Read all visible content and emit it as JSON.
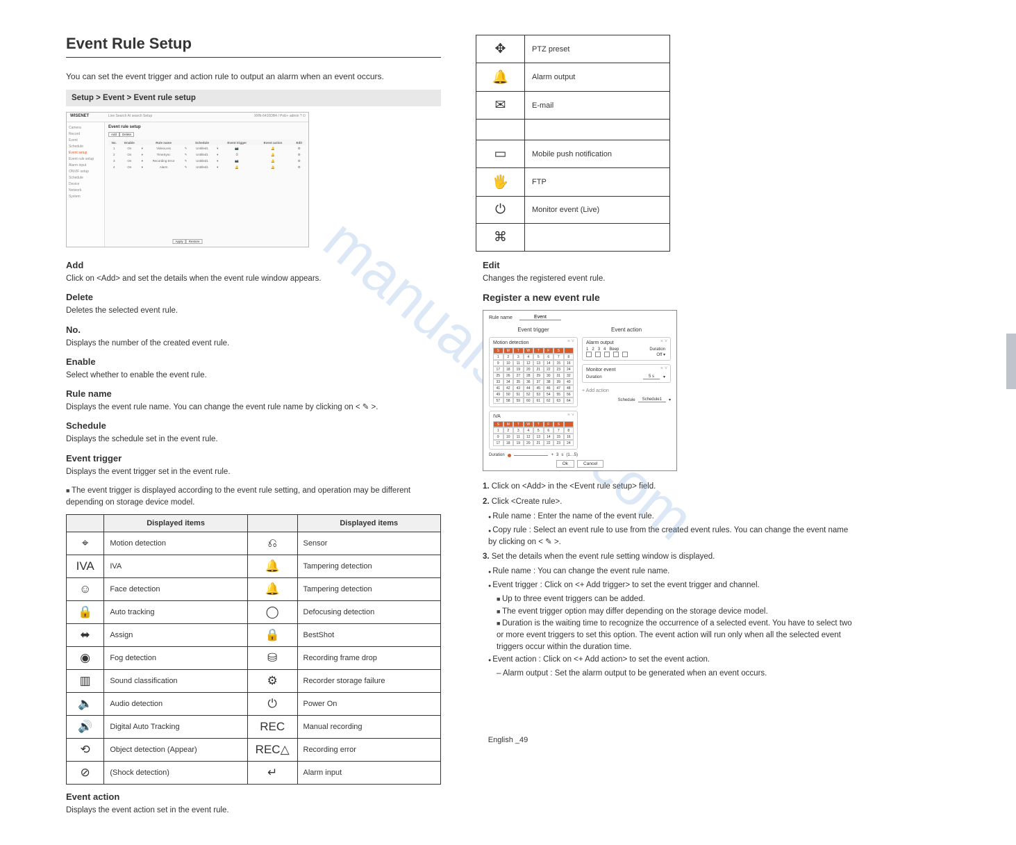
{
  "left": {
    "title": "Event Rule Setup",
    "desc": "You can set the event trigger and action rule to output an alarm when an event occurs.",
    "greybar": "Setup > Event > Event rule setup",
    "screenshot": {
      "brand": "WISENET",
      "tabs": "Live    Search    AI search    Setup",
      "right_links": "XRN-6410DB4 / PoE+    admin    ?    ⏻",
      "sidebar": [
        "Camera",
        "Record",
        "Event",
        "Schedule",
        "Event setup",
        "Event rule setup",
        "Alarm input",
        "ONVIF setup",
        "Schedule",
        "Device",
        "Network",
        "System"
      ],
      "sidebar_selected_index": 4,
      "main_title": "Event rule setup",
      "btns": [
        "Add",
        "Delete"
      ],
      "cols": [
        "No.",
        "Enable",
        "",
        "Rule name",
        "",
        "Schedule",
        "",
        "Event trigger",
        "",
        "Event action",
        "",
        "Edit"
      ],
      "rows": [
        [
          "1",
          "On",
          "▾",
          "VideoLoss",
          "✎",
          "Untitled1",
          "▾",
          "📷",
          "",
          "🔔",
          "",
          "⚙"
        ],
        [
          "2",
          "On",
          "▾",
          "TimeSync",
          "✎",
          "Untitled1",
          "▾",
          "⏱",
          "",
          "🔔",
          "",
          "⚙"
        ],
        [
          "3",
          "On",
          "▾",
          "Recording Error",
          "✎",
          "Untitled1",
          "▾",
          "📷",
          "",
          "🔔",
          "",
          "⚙"
        ],
        [
          "4",
          "On",
          "▾",
          "Alarm",
          "✎",
          "Untitled1",
          "▾",
          "🔔",
          "",
          "🔔",
          "",
          "⚙"
        ]
      ],
      "footer_btns": [
        "Apply",
        "Restore"
      ]
    },
    "paras": [
      {
        "h": "Add",
        "p": "Click on <Add> and set the details when the event rule window appears."
      },
      {
        "h": "Delete",
        "p": "Deletes the selected event rule."
      },
      {
        "h": "No.",
        "p": "Displays the number of the created event rule."
      },
      {
        "h": "Enable",
        "p": "Select whether to enable the event rule."
      },
      {
        "h": "Rule name",
        "p": "Displays the event rule name. You can change the event rule name by clicking on < ✎ >."
      },
      {
        "h": "Schedule",
        "p": "Displays the schedule set in the event rule."
      },
      {
        "h": "Event trigger",
        "p": "Displays the event trigger set in the event rule."
      }
    ],
    "note1": "The event trigger is displayed according to the event rule setting, and operation may be different depending on storage device model.",
    "trigger_table_header": [
      "",
      "Displayed items",
      "",
      "Displayed items"
    ],
    "triggers": [
      [
        "motion-detect-icon",
        "Motion detection",
        "sensor-icon",
        "Sensor"
      ],
      [
        "iva-icon",
        "IVA",
        "tamper-icon",
        "Tampering detection"
      ],
      [
        "face-icon",
        "Face detection",
        "tamper2-icon",
        "Tampering detection"
      ],
      [
        "auto-track-icon",
        "Auto tracking",
        "defocus-icon",
        "Defocusing detection"
      ],
      [
        "assign-icon",
        "Assign",
        "lock-icon",
        "BestShot"
      ],
      [
        "fog-icon",
        "Fog detection",
        "storage-err-icon",
        "Recording frame drop"
      ],
      [
        "sound-icon",
        "Sound classification",
        "storage-fail-icon",
        "Recorder storage failure"
      ],
      [
        "audio-icon",
        "Audio detection",
        "power-icon",
        "Power On"
      ],
      [
        "digital-auto-icon",
        "Digital Auto Tracking",
        "rec-icon",
        "Manual recording"
      ],
      [
        "appear-icon",
        "Object detection (Appear)",
        "rec-err-icon",
        "Recording error"
      ],
      [
        "shocl-icon",
        "(Shock detection)",
        "enter-icon",
        "Alarm input"
      ]
    ],
    "event_action_h": "Event action",
    "event_action_p": "Displays the event action set in the event rule."
  },
  "right": {
    "action_rows": [
      [
        "ptz-icon",
        "PTZ preset"
      ],
      [
        "alarm-out-icon",
        "Alarm output"
      ],
      [
        "email-icon",
        "E-mail"
      ],
      [
        "",
        ""
      ],
      [
        "mobile-icon",
        "Mobile push notification"
      ],
      [
        "ftp-icon",
        "FTP"
      ],
      [
        "monitor-icon",
        "Monitor event (Live)"
      ],
      [
        "cmd-icon",
        ""
      ]
    ],
    "edit_h": "Edit",
    "edit_p": "Changes the registered event rule.",
    "register_h": "Register a new event rule",
    "modal": {
      "rule_name_label": "Rule name",
      "rule_name_value": "Event",
      "trigger_h": "Event trigger",
      "action_h": "Event action",
      "trigger_panels": [
        {
          "title": "Motion detection",
          "rows": 8,
          "cols": 8,
          "days": [
            "S",
            "M",
            "T",
            "W",
            "T",
            "F",
            "S"
          ]
        },
        {
          "title": "IVA",
          "rows": 3,
          "cols": 8,
          "days": [
            "S",
            "M",
            "T",
            "W",
            "T",
            "F",
            "S"
          ]
        }
      ],
      "action_panels": [
        {
          "title": "Alarm output",
          "ck_labels": [
            "1",
            "2",
            "3",
            "4",
            "Beep"
          ],
          "dur_label": "Duration",
          "dur_val": "Off"
        },
        {
          "title": "Monitor event",
          "dur_label": "Duration",
          "dur_val": "5 s"
        }
      ],
      "add_action": "Add action",
      "duration_label": "Duration",
      "duration_range": "(1…5)",
      "duration_val": "3",
      "sched_label": "Schedule",
      "sched_val": "Schedule1",
      "btns": [
        "Ok",
        "Cancel"
      ]
    },
    "step1_label": "1.",
    "step1": "Click on <Add> in the <Event rule setup> field.",
    "step2_label": "2.",
    "step2": "Click <Create rule>.",
    "bullets": [
      "Rule name : Enter the name of the event rule.",
      "Copy rule : Select an event rule to use from the created event rules. You can change the event name by clicking on < ✎ >."
    ],
    "step3_label": "3.",
    "step3": "Set the details when the event rule setting window is displayed.",
    "subs": [
      "Rule name : You can change the event rule name.",
      "Event trigger : Click on <+ Add trigger> to set the event trigger and channel.",
      "Up to three event triggers can be added.",
      "The event trigger option may differ depending on the storage device model.",
      "Duration is the waiting time to recognize the occurrence of a selected event. You have to select two or more event triggers to set this option. The event action will run only when all the selected event triggers occur within the duration time.",
      "Event action : Click on <+ Add action> to set the event action.",
      "Alarm output : Set the alarm output to be generated when an event occurs."
    ]
  },
  "footer": "English _49",
  "watermark": "manualshive.com"
}
